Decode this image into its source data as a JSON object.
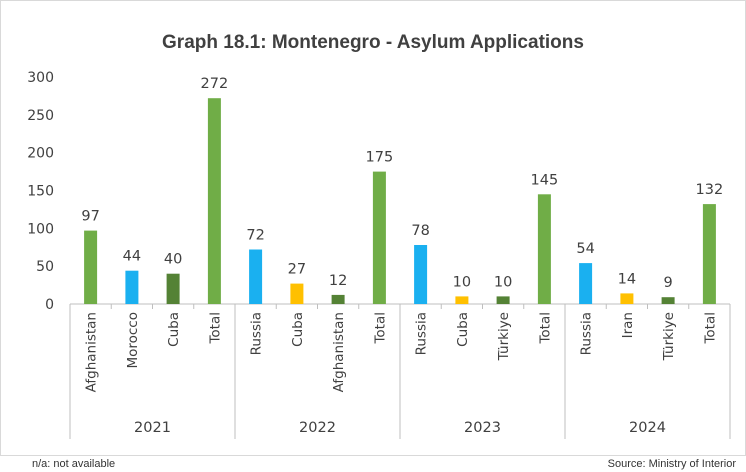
{
  "chart_data": {
    "type": "bar",
    "title": "Graph 18.1: Montenegro - Asylum Applications",
    "ylim": [
      0,
      300
    ],
    "yticks": [
      0,
      50,
      100,
      150,
      200,
      250,
      300
    ],
    "grid": false,
    "colors": {
      "Afghanistan": "#70ad47",
      "Morocco": "#1ab0f0",
      "Russia": "#1ab0f0",
      "Cuba": "#ffc000",
      "Iran": "#ffc000",
      "Türkiye": "#548235",
      "Total": "#70ad47",
      "Cuba-2021": "#548235",
      "Afghanistan-2022": "#548235"
    },
    "groups": [
      {
        "year": "2021",
        "bars": [
          {
            "category": "Afghanistan",
            "value": 97,
            "color": "#70ad47"
          },
          {
            "category": "Morocco",
            "value": 44,
            "color": "#1ab0f0"
          },
          {
            "category": "Cuba",
            "value": 40,
            "color": "#548235"
          },
          {
            "category": "Total",
            "value": 272,
            "color": "#70ad47"
          }
        ]
      },
      {
        "year": "2022",
        "bars": [
          {
            "category": "Russia",
            "value": 72,
            "color": "#1ab0f0"
          },
          {
            "category": "Cuba",
            "value": 27,
            "color": "#ffc000"
          },
          {
            "category": "Afghanistan",
            "value": 12,
            "color": "#548235"
          },
          {
            "category": "Total",
            "value": 175,
            "color": "#70ad47"
          }
        ]
      },
      {
        "year": "2023",
        "bars": [
          {
            "category": "Russia",
            "value": 78,
            "color": "#1ab0f0"
          },
          {
            "category": "Cuba",
            "value": 10,
            "color": "#ffc000"
          },
          {
            "category": "Türkiye",
            "value": 10,
            "color": "#548235"
          },
          {
            "category": "Total",
            "value": 145,
            "color": "#70ad47"
          }
        ]
      },
      {
        "year": "2024",
        "bars": [
          {
            "category": "Russia",
            "value": 54,
            "color": "#1ab0f0"
          },
          {
            "category": "Iran",
            "value": 14,
            "color": "#ffc000"
          },
          {
            "category": "Türkiye",
            "value": 9,
            "color": "#548235"
          },
          {
            "category": "Total",
            "value": 132,
            "color": "#70ad47"
          }
        ]
      }
    ]
  },
  "footnote_left": "n/a: not available",
  "footnote_right": "Source: Ministry of Interior"
}
